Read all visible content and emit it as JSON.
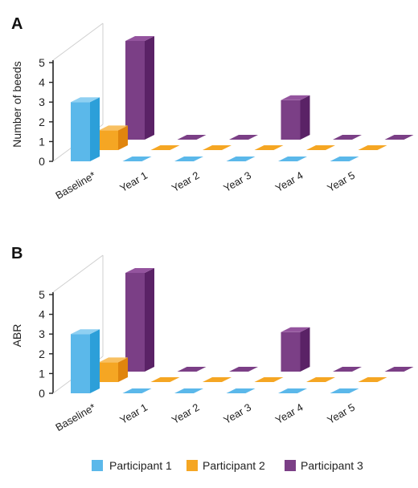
{
  "chart_data": [
    {
      "type": "bar",
      "panel": "A",
      "title": "",
      "xlabel": "",
      "ylabel": "Number of beeds",
      "ylim": [
        0,
        5
      ],
      "yticks": [
        "0",
        "1",
        "2",
        "3",
        "4",
        "5"
      ],
      "categories": [
        "Baseline*",
        "Year 1",
        "Year 2",
        "Year 3",
        "Year 4",
        "Year 5"
      ],
      "series": [
        {
          "name": "Participant 1",
          "values": [
            3,
            0,
            0,
            0,
            0,
            0
          ]
        },
        {
          "name": "Participant 2",
          "values": [
            1,
            0,
            0,
            0,
            0,
            0
          ]
        },
        {
          "name": "Participant 3",
          "values": [
            5,
            0,
            0,
            2,
            0,
            0
          ]
        }
      ]
    },
    {
      "type": "bar",
      "panel": "B",
      "title": "",
      "xlabel": "",
      "ylabel": "ABR",
      "ylim": [
        0,
        5
      ],
      "yticks": [
        "0",
        "1",
        "2",
        "3",
        "4",
        "5"
      ],
      "categories": [
        "Baseline*",
        "Year 1",
        "Year 2",
        "Year 3",
        "Year 4",
        "Year 5"
      ],
      "series": [
        {
          "name": "Participant 1",
          "values": [
            3,
            0,
            0,
            0,
            0,
            0
          ]
        },
        {
          "name": "Participant 2",
          "values": [
            1,
            0,
            0,
            0,
            0,
            0
          ]
        },
        {
          "name": "Participant 3",
          "values": [
            5,
            0,
            0,
            2,
            0,
            0
          ]
        }
      ]
    }
  ],
  "legend": {
    "placement": "bottom",
    "items": [
      {
        "label": "Participant 1"
      },
      {
        "label": "Participant 2"
      },
      {
        "label": "Participant 3"
      }
    ]
  },
  "colors": {
    "p1_front": "#5bb8ea",
    "p1_side": "#2c9fd9",
    "p1_top": "#8fd0f2",
    "p2_front": "#f5a623",
    "p2_side": "#e0850e",
    "p2_top": "#f8c062",
    "p3_front": "#7b3f86",
    "p3_side": "#5a2266",
    "p3_top": "#94549e"
  }
}
